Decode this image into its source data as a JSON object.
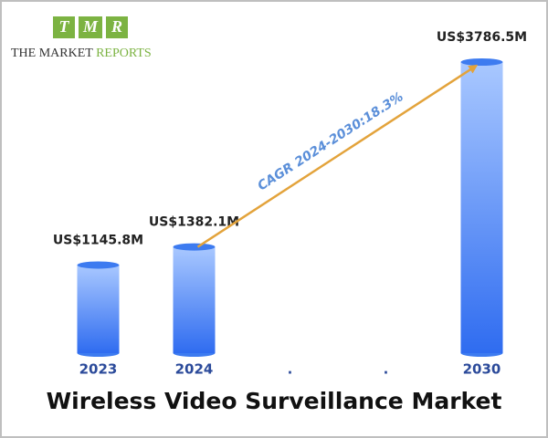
{
  "logo": {
    "letters": [
      "T",
      "M",
      "R"
    ],
    "name": "THE MARKET",
    "name_accent": "REPORTS"
  },
  "chart_data": {
    "type": "bar",
    "title": "Wireless Video Surveillance Market",
    "categories": [
      "2023",
      "2024",
      ".",
      ".",
      "2030"
    ],
    "values": [
      1145.8,
      1382.1,
      null,
      null,
      3786.5
    ],
    "value_labels": [
      "US$1145.8M",
      "US$1382.1M",
      null,
      null,
      "US$3786.5M"
    ],
    "annotation": "CAGR 2024-2030:18.3%",
    "color": "#3d7bf0"
  }
}
